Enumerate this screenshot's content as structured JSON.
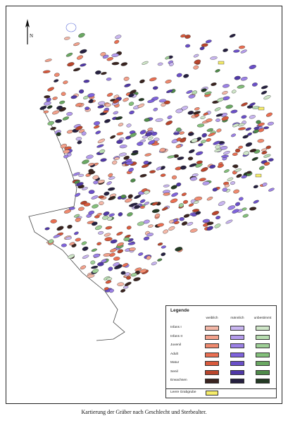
{
  "caption": "Kartierung der Gräber nach Geschlecht und Sterbealter.",
  "north_label": "N",
  "legend": {
    "title": "Legende",
    "columns": [
      "weiblich",
      "männlich",
      "unbestimmt"
    ],
    "rows": [
      {
        "label": "Infans I",
        "colors": [
          "#f4b8a8",
          "#c9b6f0",
          "#cfe6c8"
        ]
      },
      {
        "label": "Infans II",
        "colors": [
          "#f2a18c",
          "#b49bec",
          "#b7dcb0"
        ]
      },
      {
        "label": "Juvenil",
        "colors": [
          "#ef8a6f",
          "#9c81e6",
          "#9fd097"
        ]
      },
      {
        "label": "Adult",
        "colors": [
          "#ea6f52",
          "#7f63dc",
          "#84c07b"
        ]
      },
      {
        "label": "Matur",
        "colors": [
          "#d95a3d",
          "#6a4fc8",
          "#6aa862"
        ]
      },
      {
        "label": "Senil",
        "colors": [
          "#b8452c",
          "#5038a6",
          "#4f8a4a"
        ]
      },
      {
        "label": "Erwachsen",
        "colors": [
          "#3a2420",
          "#262040",
          "#243a24"
        ]
      }
    ],
    "empty_grave_label": "Leere Grabgrube",
    "empty_grave_color": "#f5ec6a"
  }
}
